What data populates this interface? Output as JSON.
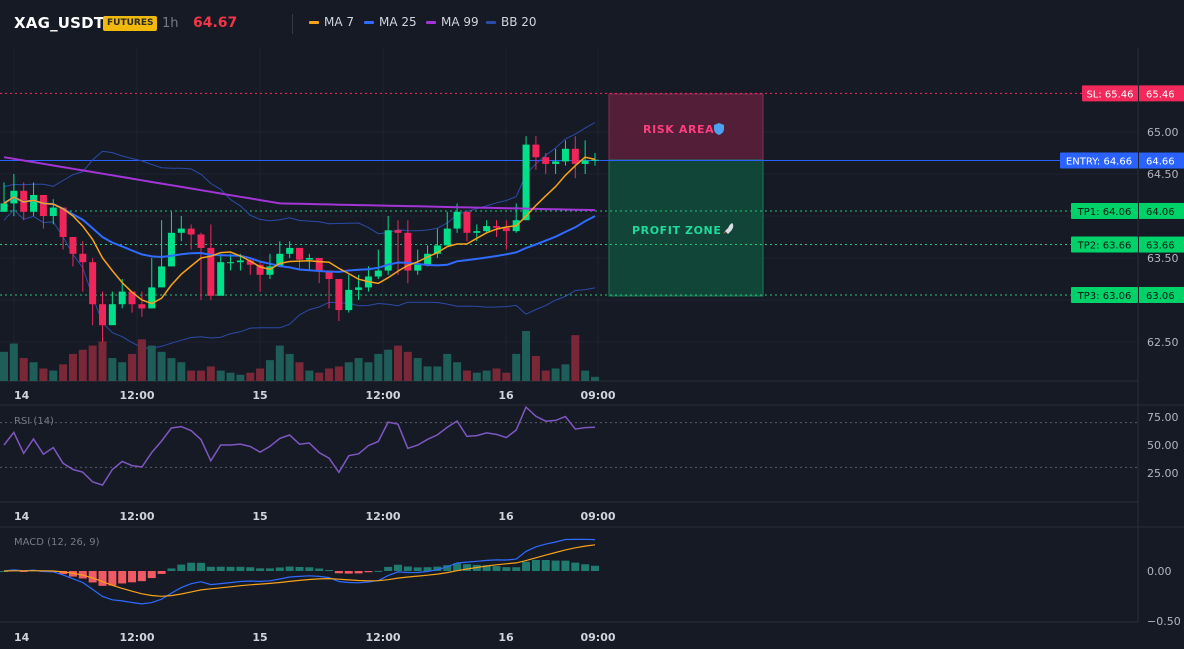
{
  "header": {
    "symbol": "XAG_USDT",
    "badge": "FUTURES",
    "timeframe": "1h",
    "last_price": "64.67",
    "price_color": "#f23645"
  },
  "legend": [
    {
      "label": "MA 7",
      "color": "#f7a21b"
    },
    {
      "label": "MA 25",
      "color": "#2f6bff"
    },
    {
      "label": "MA 99",
      "color": "#a335d6"
    },
    {
      "label": "BB 20",
      "color": "#2b4ba8"
    }
  ],
  "x_axis_labels": [
    "14",
    "12:00",
    "15",
    "12:00",
    "16",
    "09:00"
  ],
  "price_axis": {
    "ticks": [
      "65.00",
      "64.50",
      "63.50",
      "62.50"
    ]
  },
  "trade_levels": {
    "sl": {
      "label": "SL: 65.46",
      "value": "65.46",
      "price": 65.46,
      "color": "#f2295a"
    },
    "entry": {
      "label": "ENTRY: 64.66",
      "value": "64.66",
      "price": 64.66,
      "color": "#2962ff"
    },
    "tp1": {
      "label": "TP1: 64.06",
      "value": "64.06",
      "price": 64.06,
      "color": "#00c853"
    },
    "tp2": {
      "label": "TP2: 63.66",
      "value": "63.66",
      "price": 63.66,
      "color": "#00c853"
    },
    "tp3": {
      "label": "TP3: 63.06",
      "value": "63.06",
      "price": 63.06,
      "color": "#00c853"
    }
  },
  "zones": {
    "risk_label": "RISK AREA",
    "risk_icon": "shield-icon",
    "profit_label": "PROFIT ZONE",
    "profit_icon": "rocket-icon"
  },
  "rsi": {
    "title": "RSI (14)",
    "ticks": [
      "75.00",
      "50.00",
      "25.00"
    ],
    "overbought": 70,
    "oversold": 30,
    "line_color": "#7e57c2"
  },
  "macd": {
    "title": "MACD (12, 26, 9)",
    "ticks": [
      "0.00",
      "−0.50"
    ]
  },
  "colors": {
    "up": "#00e08a",
    "down": "#f0265a",
    "vol_up": "#1f5e58",
    "vol_down": "#7a2838",
    "grid": "#1f2330"
  },
  "chart_data": {
    "type": "candlestick",
    "closes": [
      64.15,
      64.3,
      64.05,
      64.25,
      64.0,
      64.1,
      63.75,
      63.55,
      63.45,
      62.95,
      62.7,
      62.95,
      63.1,
      62.95,
      62.9,
      63.15,
      63.4,
      63.8,
      63.85,
      63.78,
      63.62,
      63.05,
      63.45,
      63.45,
      63.47,
      63.42,
      63.3,
      63.4,
      63.55,
      63.62,
      63.48,
      63.5,
      63.35,
      63.25,
      62.88,
      63.12,
      63.15,
      63.28,
      63.35,
      63.83,
      63.8,
      63.35,
      63.42,
      63.55,
      63.65,
      63.85,
      64.05,
      63.8,
      63.82,
      63.88,
      63.86,
      63.82,
      63.95,
      64.85,
      64.7,
      64.62,
      64.65,
      64.8,
      64.62,
      64.66,
      64.67
    ],
    "highs": [
      64.4,
      64.5,
      64.4,
      64.4,
      64.2,
      64.2,
      64.05,
      63.75,
      63.7,
      63.5,
      63.1,
      63.1,
      63.25,
      63.1,
      63.1,
      63.5,
      63.95,
      64.05,
      64.0,
      63.9,
      63.8,
      63.9,
      63.55,
      63.55,
      63.55,
      63.5,
      63.45,
      63.55,
      63.7,
      63.7,
      63.6,
      63.55,
      63.45,
      63.35,
      63.2,
      63.3,
      63.3,
      63.4,
      63.6,
      64.0,
      63.95,
      63.95,
      63.6,
      63.65,
      63.85,
      64.05,
      64.15,
      64.0,
      63.9,
      63.95,
      63.95,
      63.95,
      64.15,
      64.95,
      64.95,
      64.75,
      64.8,
      64.9,
      64.95,
      64.9,
      64.75
    ],
    "lows": [
      64.05,
      64.0,
      63.95,
      64.0,
      63.85,
      63.9,
      63.6,
      63.4,
      63.1,
      62.7,
      62.5,
      62.8,
      62.9,
      62.85,
      62.8,
      62.95,
      63.2,
      63.7,
      63.7,
      63.6,
      63.0,
      63.0,
      63.3,
      63.35,
      63.35,
      63.3,
      63.1,
      63.25,
      63.45,
      63.5,
      63.35,
      63.35,
      63.2,
      62.9,
      62.75,
      62.85,
      63.0,
      63.1,
      63.25,
      63.3,
      63.3,
      63.2,
      63.3,
      63.4,
      63.5,
      63.7,
      63.8,
      63.7,
      63.7,
      63.8,
      63.75,
      63.6,
      63.8,
      63.95,
      64.55,
      64.5,
      64.5,
      64.6,
      64.45,
      64.5,
      64.6
    ],
    "volume": [
      28,
      36,
      22,
      18,
      12,
      10,
      16,
      26,
      30,
      34,
      38,
      22,
      18,
      26,
      40,
      34,
      28,
      22,
      18,
      10,
      10,
      14,
      10,
      8,
      6,
      8,
      12,
      20,
      34,
      26,
      18,
      10,
      8,
      12,
      14,
      18,
      22,
      18,
      26,
      30,
      34,
      28,
      22,
      14,
      14,
      26,
      18,
      10,
      8,
      10,
      12,
      8,
      26,
      48,
      24,
      10,
      12,
      16,
      44,
      10,
      4
    ]
  }
}
